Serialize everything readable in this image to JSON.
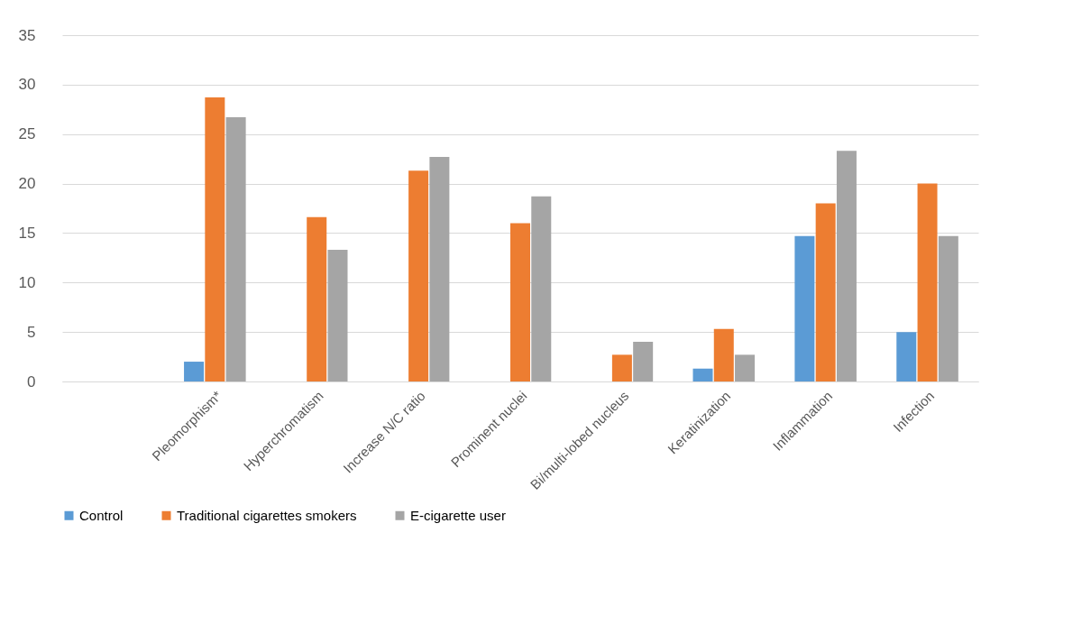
{
  "chart_data": {
    "type": "bar",
    "categories": [
      null,
      "Pleomorphism*",
      "Hyperchromatism",
      "Increase N/C ratio",
      "Prominent nuclei",
      "Bi/multi-lobed nucleus",
      "Keratinization",
      "Inflammation",
      "Infection"
    ],
    "series": [
      {
        "name": "Control",
        "color": "#5b9bd5",
        "values": [
          null,
          2,
          null,
          null,
          null,
          null,
          1.3,
          14.7,
          5
        ]
      },
      {
        "name": "Traditional cigarettes smokers",
        "color": "#ed7d31",
        "values": [
          null,
          28.7,
          16.6,
          21.3,
          16,
          2.7,
          5.3,
          18,
          20
        ]
      },
      {
        "name": "E-cigarette user",
        "color": "#a5a5a5",
        "values": [
          null,
          26.7,
          13.3,
          22.7,
          18.7,
          4,
          2.7,
          23.3,
          14.7
        ]
      }
    ],
    "ylim": [
      0,
      35
    ],
    "yticks": [
      0,
      5,
      10,
      15,
      20,
      25,
      30,
      35
    ],
    "grid": "y",
    "legend": "bottom"
  }
}
